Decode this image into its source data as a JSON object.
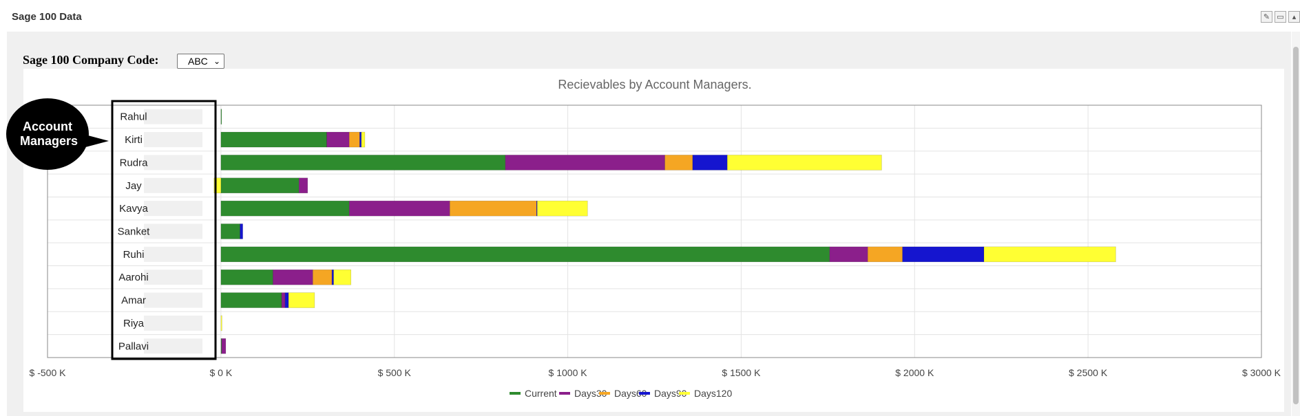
{
  "window": {
    "title": "Sage 100 Data",
    "icons": [
      "edit-icon",
      "minimize-icon",
      "collapse-icon"
    ]
  },
  "filter": {
    "label": "Sage 100 Company Code:",
    "selected": "ABC"
  },
  "annotation": {
    "text": "Account Managers"
  },
  "colors": {
    "Current": "#2e8b2e",
    "Days30": "#8b1f8b",
    "Days60": "#f5a623",
    "Days90": "#1515cf",
    "Days120": "#ffff33"
  },
  "chart_data": {
    "type": "bar",
    "orientation": "horizontal",
    "stacked": true,
    "title": "Recievables by Account Managers.",
    "categories": [
      "Rahul",
      "Kirti",
      "Rudra",
      "Jay",
      "Kavya",
      "Sanket",
      "Ruhi",
      "Aarohi",
      "Amar",
      "Riya",
      "Pallavi"
    ],
    "series": [
      {
        "name": "Current",
        "values": [
          2,
          305,
          820,
          225,
          370,
          55,
          1755,
          150,
          175,
          0,
          2
        ]
      },
      {
        "name": "Days30",
        "values": [
          0,
          65,
          460,
          25,
          290,
          0,
          110,
          115,
          10,
          0,
          12
        ]
      },
      {
        "name": "Days60",
        "values": [
          0,
          30,
          80,
          0,
          250,
          0,
          100,
          55,
          0,
          0,
          0
        ]
      },
      {
        "name": "Days90",
        "values": [
          0,
          5,
          100,
          0,
          2,
          8,
          235,
          5,
          10,
          0,
          0
        ]
      },
      {
        "name": "Days120",
        "values": [
          0,
          10,
          445,
          -20,
          145,
          0,
          380,
          50,
          75,
          3,
          0
        ]
      }
    ],
    "xlim": [
      -500,
      3000
    ],
    "xticks": [
      -500,
      0,
      500,
      1000,
      1500,
      2000,
      2500,
      3000
    ],
    "xtick_labels": [
      "$ -500 K",
      "$ 0 K",
      "$ 500 K",
      "$ 1000 K",
      "$ 1500 K",
      "$ 2000 K",
      "$ 2500 K",
      "$ 3000 K"
    ],
    "xlabel": "",
    "ylabel": "",
    "grid": true,
    "legend": "bottom-center"
  }
}
